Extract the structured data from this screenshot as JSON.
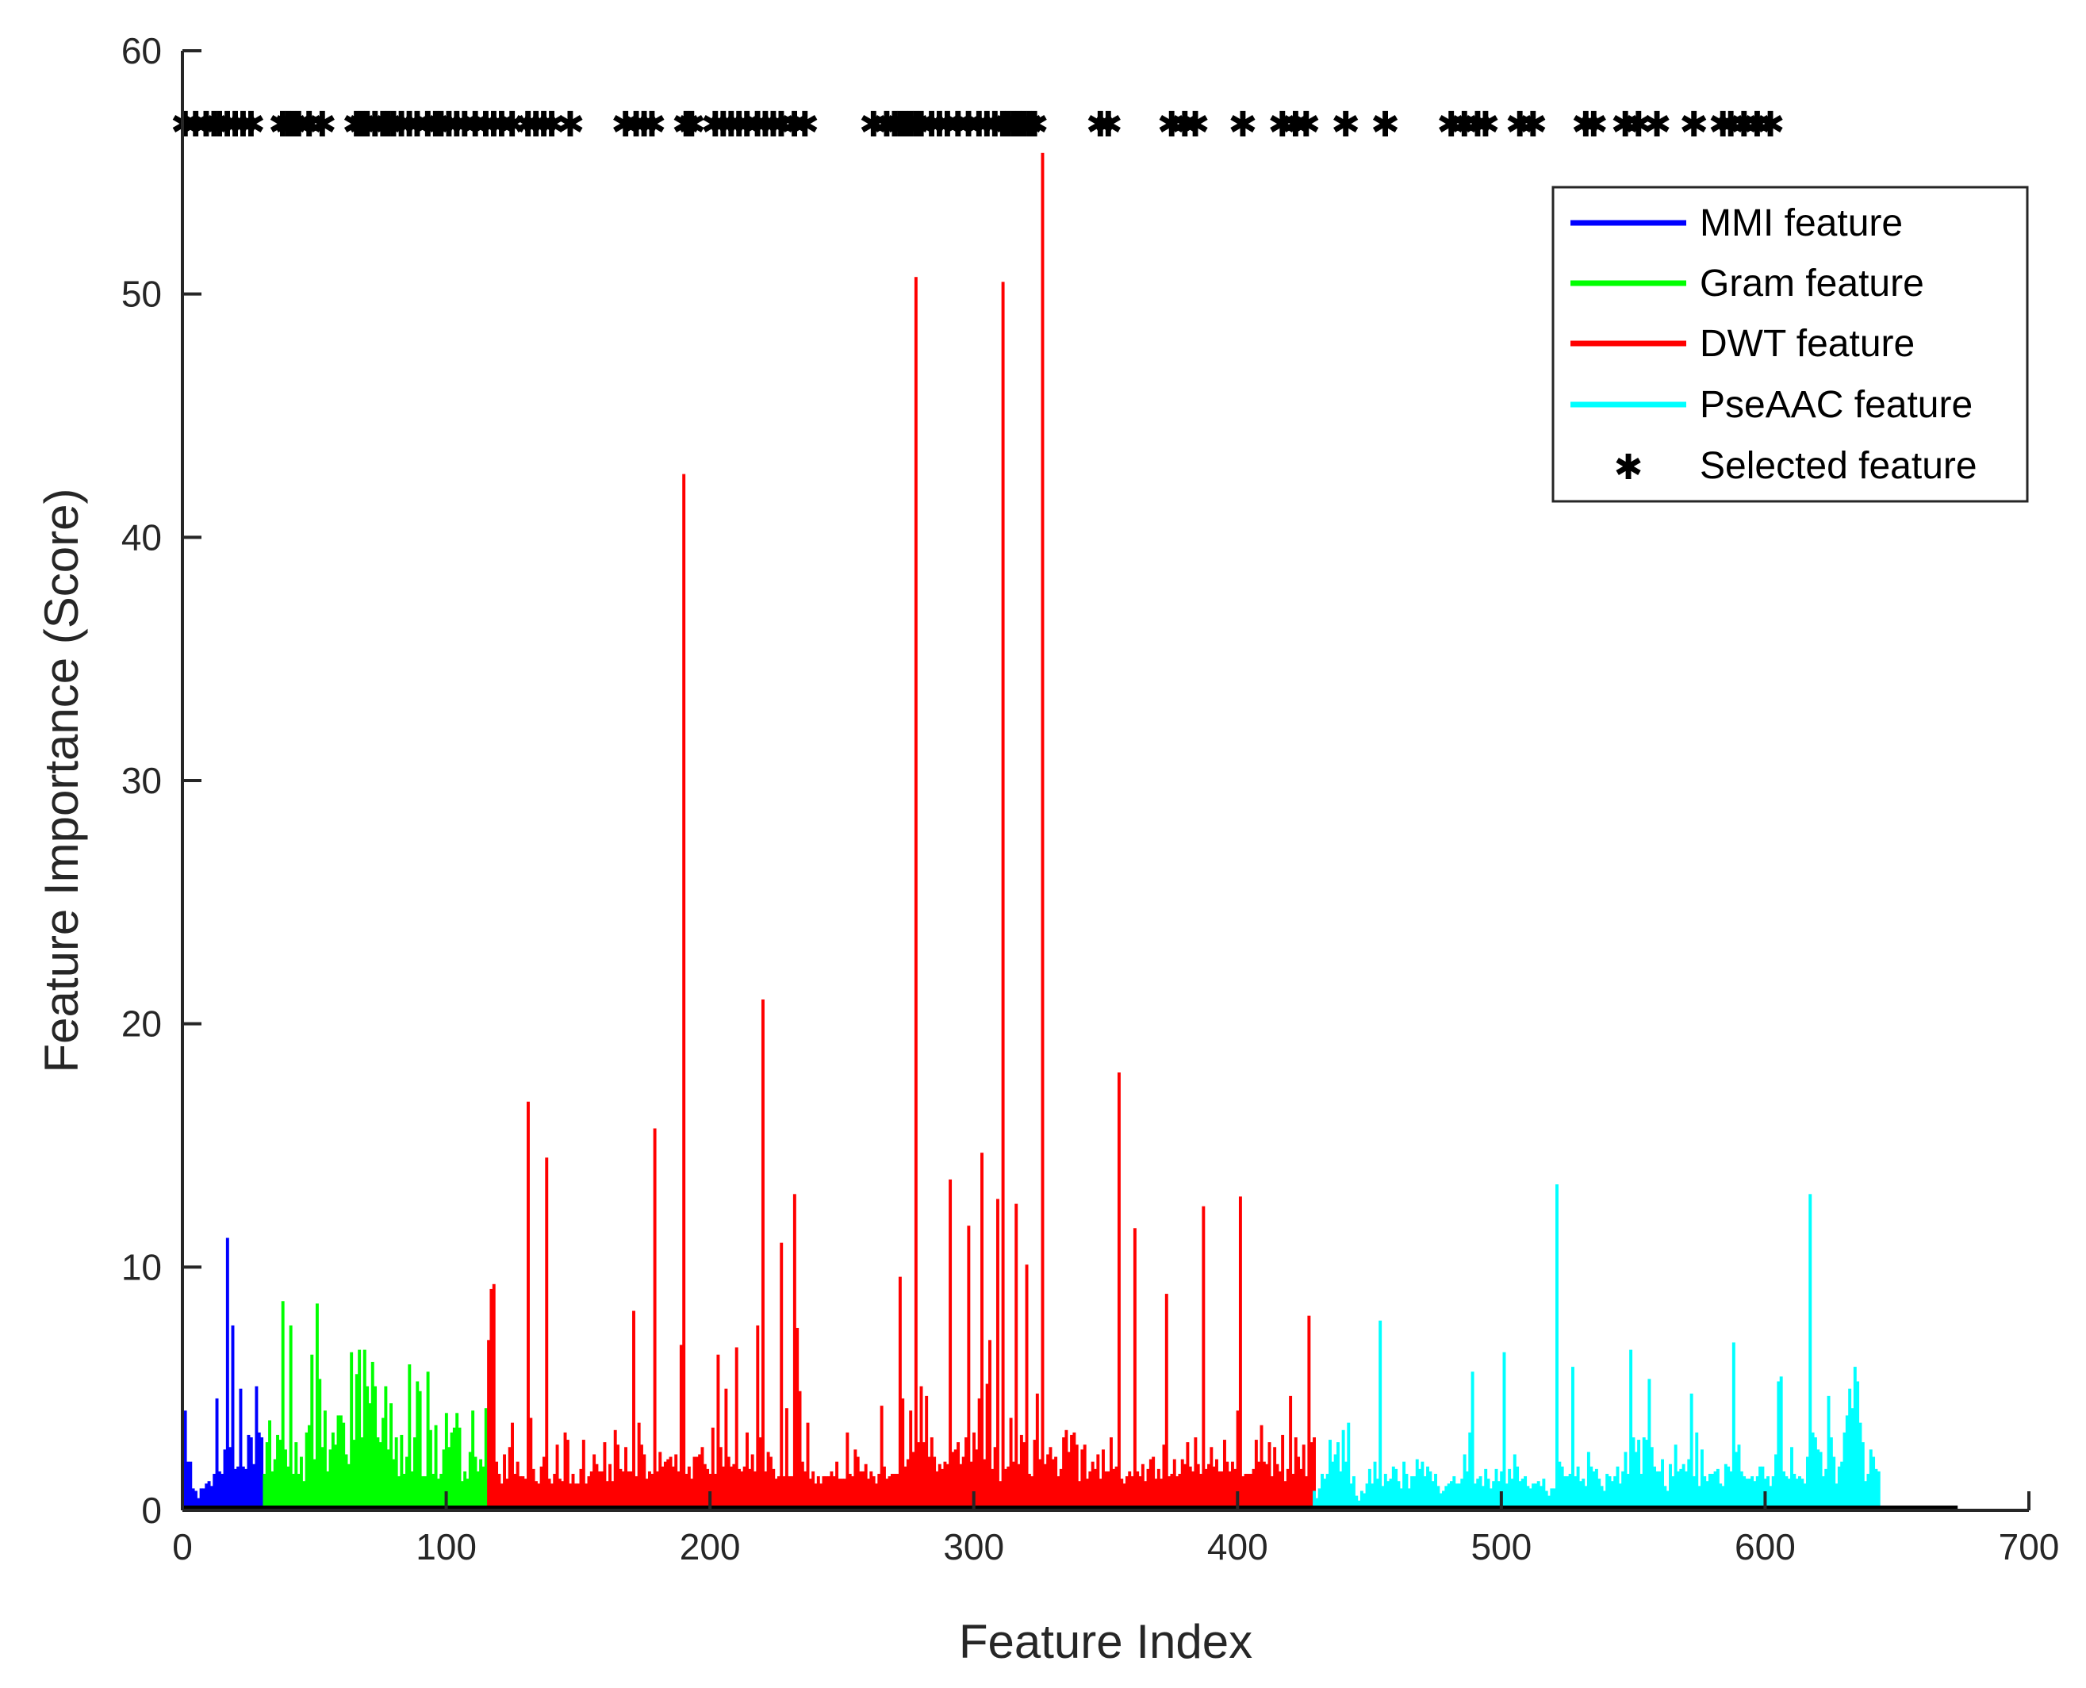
{
  "chart_data": {
    "type": "bar",
    "title": "",
    "xlabel": "Feature Index",
    "ylabel": "Feature Importance (Score)",
    "xlim": [
      0,
      700
    ],
    "ylim": [
      0,
      60
    ],
    "xticks": [
      0,
      100,
      200,
      300,
      400,
      500,
      600,
      700
    ],
    "yticks": [
      0,
      10,
      20,
      30,
      40,
      50,
      60
    ],
    "total_features": 673,
    "legend": {
      "placement": "top-right"
    },
    "colors": {
      "MMI feature": "#0000ff",
      "Gram feature": "#00ff00",
      "DWT feature": "#ff0000",
      "PseAAC feature": "#00ffff",
      "Selected feature": "#000000"
    },
    "series": [
      {
        "name": "MMI feature",
        "x_start": 1,
        "values": [
          4.1,
          2.0,
          2.0,
          0.9,
          0.8,
          0.5,
          0.9,
          0.9,
          1.1,
          1.2,
          1.0,
          1.5,
          4.6,
          1.6,
          1.5,
          2.5,
          11.2,
          2.6,
          7.6,
          1.7,
          1.8,
          5.0,
          1.8,
          1.7,
          3.1,
          3.0,
          1.9,
          5.1,
          3.2,
          3.0
        ]
      },
      {
        "name": "Gram feature",
        "x_start": 31,
        "values": [
          1.5,
          2.8,
          3.7,
          1.6,
          2.1,
          3.1,
          2.9,
          8.6,
          2.5,
          1.8,
          7.6,
          1.5,
          2.8,
          1.5,
          2.2,
          1.2,
          3.2,
          3.5,
          6.4,
          2.1,
          8.5,
          5.4,
          2.6,
          4.1,
          1.6,
          2.5,
          3.2,
          2.7,
          3.9,
          3.9,
          3.6,
          2.3,
          1.9,
          6.5,
          2.9,
          5.6,
          6.6,
          3.0,
          6.6,
          5.1,
          4.4,
          6.1,
          5.1,
          3.0,
          2.8,
          3.8,
          5.1,
          2.5,
          4.4,
          2.1,
          3.0,
          1.4,
          3.1,
          1.5,
          2.2,
          6.0,
          1.6,
          3.0,
          5.3,
          4.9,
          1.4,
          1.4,
          5.7,
          3.3,
          1.5,
          3.5,
          1.3,
          1.5,
          2.5,
          4.0,
          2.6,
          3.2,
          3.4,
          4.0,
          3.4,
          1.2,
          1.6,
          1.3,
          2.4,
          4.1,
          2.2,
          1.6,
          2.1,
          1.8,
          4.2
        ]
      },
      {
        "name": "DWT feature",
        "x_start": 116,
        "values": [
          7.0,
          9.1,
          9.3,
          2.0,
          1.5,
          1.1,
          2.3,
          1.3,
          2.6,
          3.6,
          1.5,
          2.0,
          1.4,
          1.4,
          1.3,
          16.8,
          3.8,
          1.7,
          1.2,
          1.1,
          1.8,
          2.2,
          14.5,
          1.3,
          1.1,
          1.5,
          2.7,
          1.3,
          1.2,
          3.2,
          2.9,
          1.1,
          1.5,
          1.1,
          1.1,
          1.7,
          2.9,
          1.1,
          1.4,
          1.6,
          2.3,
          1.9,
          1.6,
          1.6,
          2.8,
          1.2,
          1.9,
          1.2,
          3.3,
          2.7,
          1.7,
          1.6,
          2.6,
          1.6,
          1.6,
          8.2,
          1.4,
          3.6,
          2.7,
          2.3,
          1.3,
          1.6,
          1.5,
          15.7,
          1.6,
          2.4,
          1.8,
          2.0,
          2.1,
          2.2,
          1.8,
          2.3,
          1.6,
          6.8,
          42.6,
          1.5,
          1.8,
          1.3,
          2.2,
          2.2,
          2.3,
          2.6,
          1.9,
          1.7,
          1.5,
          3.4,
          1.5,
          6.4,
          2.6,
          1.8,
          5.0,
          2.2,
          1.8,
          1.9,
          6.7,
          1.7,
          1.6,
          1.8,
          3.2,
          1.7,
          2.3,
          1.6,
          7.6,
          3.0,
          21.0,
          1.6,
          2.4,
          2.2,
          1.7,
          1.3,
          1.4,
          11.0,
          1.4,
          4.2,
          1.4,
          1.4,
          13.0,
          7.5,
          4.9,
          2.0,
          1.6,
          3.6,
          1.3,
          1.6,
          1.1,
          1.4,
          1.1,
          1.4,
          1.4,
          1.4,
          1.6,
          1.4,
          2.0,
          1.3,
          1.3,
          1.3,
          3.2,
          1.5,
          1.4,
          2.5,
          2.2,
          1.6,
          1.6,
          1.9,
          1.3,
          1.6,
          1.4,
          1.1,
          1.5,
          4.3,
          1.8,
          1.3,
          1.4,
          1.5,
          1.5,
          1.5,
          9.6,
          4.6,
          1.8,
          2.1,
          4.1,
          2.4,
          50.7,
          2.8,
          5.1,
          2.8,
          4.7,
          2.2,
          3.0,
          2.2,
          1.6,
          1.9,
          1.7,
          2.0,
          1.9,
          13.6,
          2.4,
          2.5,
          2.8,
          1.9,
          2.2,
          3.0,
          11.7,
          2.0,
          3.2,
          2.5,
          4.6,
          14.7,
          2.1,
          5.2,
          7.0,
          1.7,
          2.6,
          12.8,
          1.2,
          50.5,
          1.7,
          1.8,
          3.8,
          2.0,
          12.6,
          1.9,
          3.1,
          2.8,
          10.1,
          1.5,
          1.4,
          2.9,
          4.8,
          2.1,
          55.8,
          1.9,
          2.3,
          2.6,
          2.1,
          2.2,
          1.4,
          1.7,
          3.0,
          3.3,
          2.4,
          3.1,
          3.2,
          2.7,
          1.2,
          2.5,
          2.7,
          1.3,
          1.6,
          2.0,
          1.7,
          2.3,
          1.3,
          2.5,
          1.6,
          1.6,
          3.0,
          1.7,
          1.8,
          18.0,
          1.3,
          1.1,
          1.4,
          1.6,
          1.4,
          11.6,
          1.6,
          1.4,
          1.9,
          1.2,
          1.7,
          2.1,
          2.2,
          1.3,
          1.7,
          1.3,
          2.7,
          8.9,
          1.4,
          1.5,
          2.1,
          1.4,
          1.5,
          2.1,
          1.9,
          2.8,
          1.8,
          1.6,
          3.0,
          1.9,
          1.5,
          12.5,
          1.7,
          1.9,
          2.6,
          1.8,
          2.1,
          1.6,
          1.6,
          2.9,
          2.0,
          1.6,
          2.0,
          1.7,
          4.1,
          12.9,
          1.4,
          1.5,
          1.5,
          1.5,
          1.7,
          2.9,
          2.0,
          3.5,
          2.0,
          1.9,
          2.8,
          1.4,
          2.6,
          1.9,
          1.6,
          3.1,
          1.2,
          1.7,
          4.7,
          1.5,
          3.0,
          2.2,
          1.7,
          2.7,
          1.4,
          8.0,
          2.8,
          3.0
        ]
      },
      {
        "name": "PseAAC feature",
        "x_start": 429,
        "values": [
          0.8,
          0.5,
          0.9,
          1.5,
          1.3,
          1.5,
          2.9,
          2.0,
          2.3,
          2.8,
          1.6,
          3.3,
          2.0,
          3.6,
          1.1,
          1.4,
          0.6,
          0.4,
          0.8,
          0.7,
          1.1,
          1.7,
          1.1,
          2.0,
          1.3,
          7.8,
          1.0,
          1.5,
          1.2,
          1.3,
          1.8,
          1.7,
          1.2,
          0.9,
          2.0,
          1.5,
          0.9,
          1.4,
          1.4,
          2.1,
          1.7,
          2.0,
          1.4,
          1.8,
          1.6,
          1.2,
          1.5,
          1.0,
          0.7,
          0.8,
          1.0,
          1.1,
          1.2,
          1.4,
          1.1,
          1.1,
          1.3,
          2.3,
          1.6,
          3.2,
          5.7,
          1.1,
          1.3,
          1.4,
          1.0,
          1.7,
          1.3,
          0.9,
          1.2,
          1.7,
          1.2,
          1.6,
          6.5,
          1.1,
          1.7,
          1.3,
          2.3,
          1.8,
          1.2,
          1.3,
          1.4,
          1.0,
          0.9,
          1.1,
          1.1,
          1.2,
          1.0,
          1.3,
          0.8,
          0.6,
          0.9,
          0.9,
          13.4,
          2.0,
          1.8,
          1.4,
          1.4,
          1.5,
          5.9,
          1.4,
          1.8,
          1.2,
          1.3,
          1.0,
          2.4,
          1.8,
          1.6,
          1.7,
          1.3,
          1.0,
          0.8,
          1.5,
          1.4,
          1.2,
          1.4,
          1.8,
          1.1,
          1.6,
          2.4,
          1.5,
          6.6,
          3.0,
          2.4,
          2.9,
          1.5,
          3.0,
          2.9,
          5.4,
          2.6,
          1.8,
          1.6,
          1.6,
          2.1,
          1.0,
          0.8,
          1.9,
          1.4,
          2.7,
          1.6,
          1.7,
          1.9,
          1.6,
          2.1,
          4.8,
          1.4,
          3.2,
          1.0,
          2.5,
          1.4,
          1.2,
          1.5,
          1.5,
          1.6,
          1.7,
          1.1,
          1.0,
          1.9,
          1.8,
          1.6,
          6.9,
          2.4,
          2.7,
          1.6,
          1.4,
          1.3,
          1.3,
          1.4,
          1.2,
          1.4,
          1.8,
          1.8,
          1.3,
          1.4,
          1.0,
          1.4,
          2.3,
          5.3,
          5.5,
          1.6,
          1.4,
          1.3,
          2.6,
          1.5,
          1.3,
          1.4,
          1.3,
          1.1,
          2.2,
          13.0,
          3.2,
          3.0,
          2.5,
          2.4,
          1.4,
          1.7,
          4.7,
          3.0,
          2.2,
          1.1,
          1.8,
          2.0,
          3.2,
          3.9,
          5.0,
          4.2,
          5.9,
          5.3,
          3.6,
          2.8,
          1.2,
          1.5,
          2.5,
          2.2,
          1.7,
          1.6
        ]
      },
      {
        "name": "Selected feature",
        "y_value": 57,
        "x": [
          1,
          5,
          9,
          12,
          14,
          17,
          20,
          23,
          26,
          38,
          40,
          42,
          44,
          48,
          53,
          66,
          68,
          70,
          73,
          76,
          78,
          80,
          83,
          86,
          89,
          93,
          96,
          98,
          101,
          104,
          107,
          111,
          115,
          118,
          121,
          125,
          131,
          134,
          137,
          140,
          147,
          168,
          172,
          175,
          178,
          191,
          193,
          202,
          205,
          208,
          211,
          214,
          218,
          221,
          224,
          227,
          232,
          236,
          262,
          267,
          270,
          272,
          274,
          276,
          278,
          280,
          284,
          287,
          290,
          294,
          298,
          302,
          305,
          308,
          311,
          313,
          315,
          317,
          319,
          321,
          323,
          348,
          351,
          375,
          380,
          384,
          402,
          417,
          422,
          426,
          441,
          456,
          481,
          486,
          491,
          494,
          507,
          512,
          532,
          535,
          547,
          552,
          559,
          573,
          584,
          587,
          592,
          597,
          602
        ]
      }
    ]
  }
}
